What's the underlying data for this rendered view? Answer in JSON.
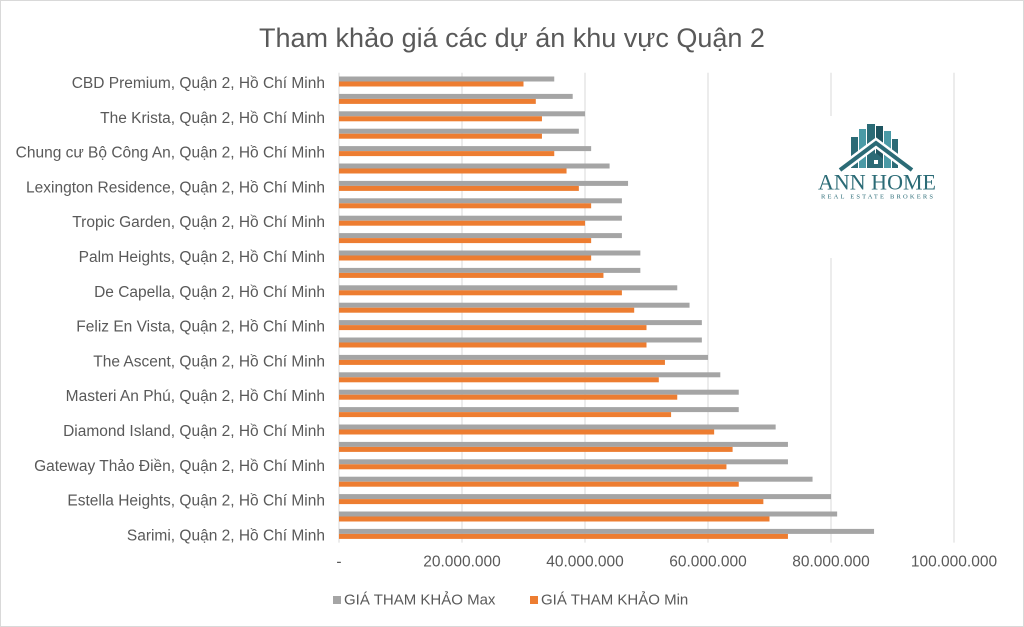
{
  "chart_data": {
    "type": "bar",
    "orientation": "horizontal",
    "title": "Tham khảo giá các dự án khu vực Quận 2",
    "categories": [
      "CBD Premium, Quận 2, Hồ Chí Minh",
      "",
      "The Krista, Quận 2, Hồ Chí Minh",
      "",
      "Chung cư Bộ Công An, Quận 2, Hồ Chí Minh",
      "",
      "Lexington Residence, Quận 2, Hồ Chí Minh",
      "",
      "Tropic Garden, Quận 2, Hồ Chí Minh",
      "",
      "Palm Heights, Quận 2, Hồ Chí Minh",
      "",
      "De Capella, Quận 2, Hồ Chí Minh",
      "",
      "Feliz En Vista, Quận 2, Hồ Chí Minh",
      "",
      "The Ascent, Quận 2, Hồ Chí Minh",
      "",
      "Masteri An Phú, Quận 2, Hồ Chí Minh",
      "",
      "Diamond Island, Quận 2, Hồ Chí Minh",
      "",
      "Gateway Thảo Điền, Quận 2, Hồ Chí Minh",
      "",
      "Estella Heights, Quận 2, Hồ Chí Minh",
      "",
      "Sarimi, Quận 2, Hồ Chí Minh"
    ],
    "series": [
      {
        "name": "GIÁ THAM KHẢO Max",
        "color": "#a5a5a5",
        "values": [
          35000000,
          38000000,
          40000000,
          39000000,
          41000000,
          44000000,
          47000000,
          46000000,
          46000000,
          46000000,
          49000000,
          49000000,
          55000000,
          57000000,
          59000000,
          59000000,
          60000000,
          62000000,
          65000000,
          65000000,
          71000000,
          73000000,
          73000000,
          77000000,
          80000000,
          81000000,
          87000000
        ]
      },
      {
        "name": "GIÁ THAM KHẢO Min",
        "color": "#ed7d31",
        "values": [
          30000000,
          32000000,
          33000000,
          33000000,
          35000000,
          37000000,
          39000000,
          41000000,
          40000000,
          41000000,
          41000000,
          43000000,
          46000000,
          48000000,
          50000000,
          50000000,
          53000000,
          52000000,
          55000000,
          54000000,
          61000000,
          64000000,
          63000000,
          65000000,
          69000000,
          70000000,
          73000000
        ]
      }
    ],
    "x_ticks": [
      0,
      20000000,
      40000000,
      60000000,
      80000000,
      100000000
    ],
    "x_tick_labels": [
      "-",
      "20.000.000",
      "40.000.000",
      "60.000.000",
      "80.000.000",
      "100.000.000"
    ],
    "xlim": [
      0,
      100000000
    ],
    "grid": true,
    "legend": "bottom"
  },
  "logo": {
    "name": "ANN HOME",
    "tagline": "REAL ESTATE BROKERS",
    "color": "#2b6b76"
  }
}
